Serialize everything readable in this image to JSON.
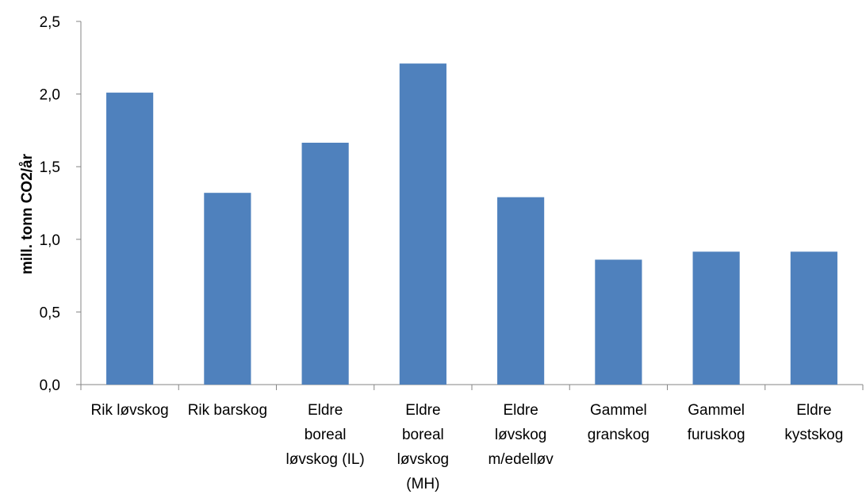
{
  "chart_data": {
    "type": "bar",
    "title": "",
    "xlabel": "",
    "ylabel": "mill. tonn CO2/år",
    "categories": [
      [
        "Rik løvskog"
      ],
      [
        "Rik barskog"
      ],
      [
        "Eldre",
        "boreal",
        "løvskog (IL)"
      ],
      [
        "Eldre",
        "boreal",
        "løvskog",
        "(MH)"
      ],
      [
        "Eldre",
        "løvskog",
        "m/edelløv"
      ],
      [
        "Gammel",
        "granskog"
      ],
      [
        "Gammel",
        "furuskog"
      ],
      [
        "Eldre",
        "kystskog"
      ]
    ],
    "values": [
      2.01,
      1.32,
      1.665,
      2.21,
      1.29,
      0.86,
      0.915,
      0.915
    ],
    "ylim": [
      0,
      2.5
    ],
    "yticks": [
      0,
      0.5,
      1.0,
      1.5,
      2.0,
      2.5
    ],
    "ytick_labels": [
      "0,0",
      "0,5",
      "1,0",
      "1,5",
      "2,0",
      "2,5"
    ],
    "grid": false,
    "legend": "none",
    "bar_color": "#4f81bd",
    "axis_color": "#868686"
  }
}
